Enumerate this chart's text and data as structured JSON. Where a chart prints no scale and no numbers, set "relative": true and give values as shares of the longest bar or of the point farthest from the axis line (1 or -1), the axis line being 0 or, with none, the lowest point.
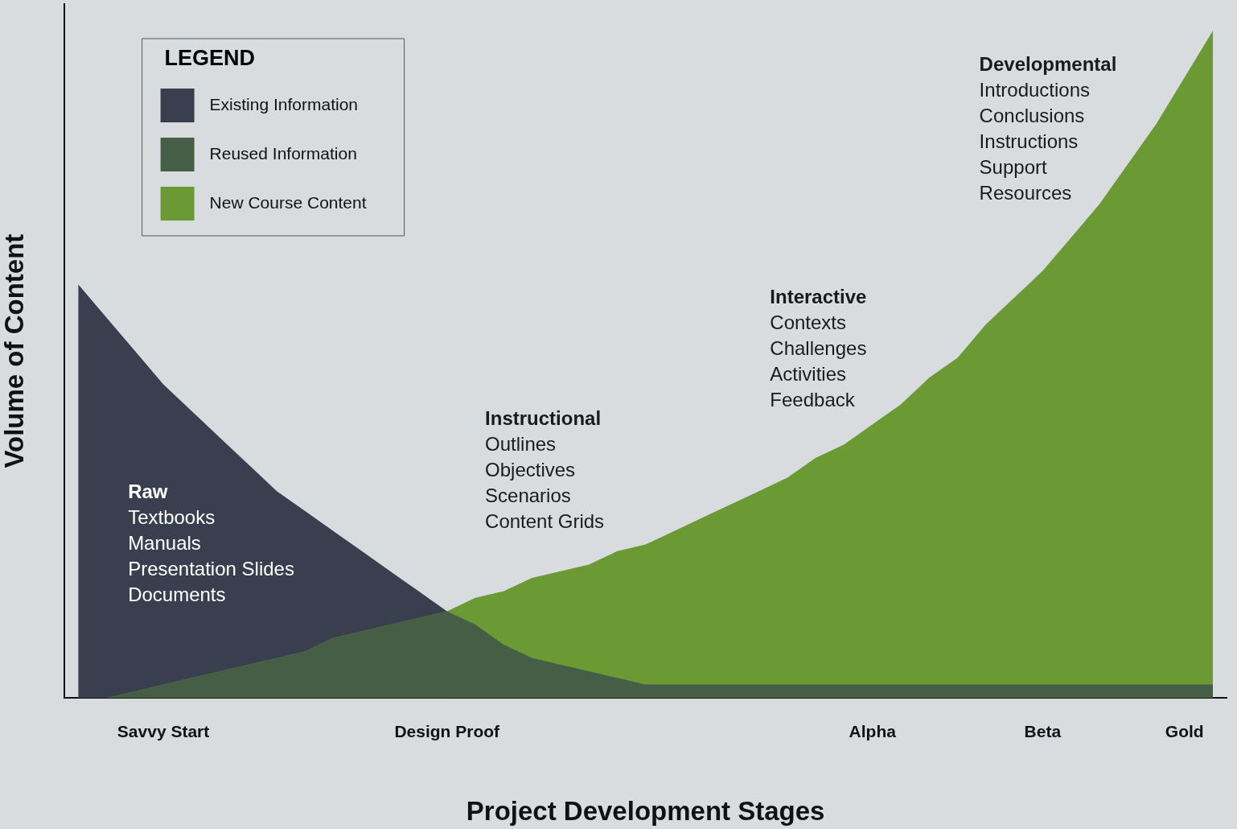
{
  "chart_data": {
    "type": "area",
    "relative": true,
    "xlabel": "Project Development Stages",
    "ylabel": "Volume of Content",
    "legend_title": "LEGEND",
    "legend": "top left",
    "grid": false,
    "categories": [
      null,
      null,
      null,
      "Savvy Start",
      null,
      null,
      null,
      null,
      null,
      null,
      null,
      null,
      null,
      "Design Proof",
      null,
      null,
      null,
      null,
      null,
      null,
      null,
      null,
      null,
      null,
      null,
      null,
      null,
      null,
      "Alpha",
      null,
      null,
      null,
      null,
      null,
      "Beta",
      null,
      null,
      null,
      null,
      "Gold",
      null
    ],
    "series": [
      {
        "name": "Existing Information",
        "color": "#3a3f4f",
        "values": [
          0.62,
          0.57,
          0.52,
          0.47,
          0.43,
          0.39,
          0.35,
          0.31,
          0.28,
          0.25,
          0.22,
          0.19,
          0.16,
          0.13,
          null,
          null,
          null,
          null,
          null,
          null,
          null,
          null,
          null,
          null,
          null,
          null,
          null,
          null,
          null,
          null,
          null,
          null,
          null,
          null,
          null,
          null,
          null,
          null,
          null,
          null,
          null
        ]
      },
      {
        "name": "Reused Information",
        "color": "#455e45",
        "values": [
          0,
          0,
          0.01,
          0.02,
          0.03,
          0.04,
          0.05,
          0.06,
          0.07,
          0.09,
          0.1,
          0.11,
          0.12,
          0.13,
          0.11,
          0.08,
          0.06,
          0.05,
          0.04,
          0.03,
          0.02,
          0.02,
          0.02,
          0.02,
          0.02,
          0.02,
          0.02,
          0.02,
          0.02,
          0.02,
          0.02,
          0.02,
          0.02,
          0.02,
          0.02,
          0.02,
          0.02,
          0.02,
          0.02,
          0.02,
          0.02
        ]
      },
      {
        "name": "New Course Content",
        "color": "#6b9a35",
        "values": [
          0,
          0,
          0.01,
          0.02,
          0.03,
          0.04,
          0.05,
          0.06,
          0.07,
          0.09,
          0.1,
          0.11,
          0.12,
          0.13,
          0.15,
          0.16,
          0.18,
          0.19,
          0.2,
          0.22,
          0.23,
          0.25,
          0.27,
          0.29,
          0.31,
          0.33,
          0.36,
          0.38,
          0.41,
          0.44,
          0.48,
          0.51,
          0.56,
          0.6,
          0.64,
          0.69,
          0.74,
          0.8,
          0.86,
          0.93,
          1
        ]
      }
    ],
    "annotations": [
      "Raw\nTextbooks\nManuals\nPresentation Slides\nDocuments",
      "Instructional\nOutlines\nObjectives\nScenarios\nContent Grids",
      "Interactive\nContexts\nChallenges\nActivities\nFeedback",
      "Developmental\nIntroductions\nConclusions\nInstructions\nSupport\nResources"
    ]
  }
}
